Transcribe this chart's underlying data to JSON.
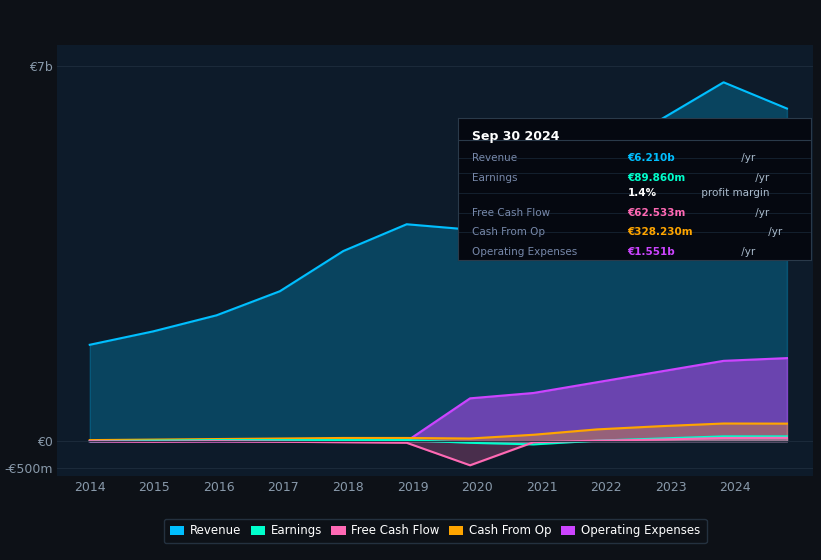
{
  "background_color": "#0d1117",
  "chart_bg_color": "#0d1b2a",
  "xlabel_ticks": [
    "2014",
    "2015",
    "2016",
    "2017",
    "2018",
    "2019",
    "2020",
    "2021",
    "2022",
    "2023",
    "2024"
  ],
  "series": {
    "Revenue": {
      "color": "#00bfff",
      "fill_alpha": 0.25,
      "data": [
        1.8,
        2.05,
        2.35,
        2.8,
        3.55,
        4.05,
        3.95,
        4.05,
        5.0,
        6.0,
        6.7,
        6.21
      ]
    },
    "Earnings": {
      "color": "#00ffcc",
      "fill_alpha": 0.2,
      "data": [
        0.0,
        0.01,
        0.02,
        0.02,
        0.02,
        0.02,
        -0.03,
        -0.06,
        0.01,
        0.05,
        0.09,
        0.09
      ]
    },
    "Free Cash Flow": {
      "color": "#ff69b4",
      "fill_alpha": 0.25,
      "data": [
        0.0,
        -0.01,
        0.0,
        -0.01,
        -0.02,
        -0.03,
        -0.45,
        -0.02,
        0.01,
        0.03,
        0.06,
        0.063
      ]
    },
    "Cash From Op": {
      "color": "#ffa500",
      "fill_alpha": 0.3,
      "data": [
        0.02,
        0.03,
        0.04,
        0.05,
        0.06,
        0.06,
        0.05,
        0.12,
        0.22,
        0.28,
        0.33,
        0.328
      ]
    },
    "Operating Expenses": {
      "color": "#cc44ff",
      "fill_alpha": 0.5,
      "data": [
        0.0,
        0.0,
        0.0,
        0.0,
        0.0,
        0.0,
        0.8,
        0.9,
        1.1,
        1.3,
        1.5,
        1.551
      ]
    }
  },
  "info_box": {
    "title": "Sep 30 2024",
    "rows": [
      {
        "label": "Revenue",
        "value": "€6.210b",
        "value_color": "#00bfff",
        "suffix": " /yr"
      },
      {
        "label": "Earnings",
        "value": "€89.860m",
        "value_color": "#00ffcc",
        "suffix": " /yr"
      },
      {
        "label": "",
        "value": "1.4%",
        "value_color": "#ffffff",
        "suffix": " profit margin"
      },
      {
        "label": "Free Cash Flow",
        "value": "€62.533m",
        "value_color": "#ff69b4",
        "suffix": " /yr"
      },
      {
        "label": "Cash From Op",
        "value": "€328.230m",
        "value_color": "#ffa500",
        "suffix": " /yr"
      },
      {
        "label": "Operating Expenses",
        "value": "€1.551b",
        "value_color": "#cc44ff",
        "suffix": " /yr"
      }
    ]
  },
  "legend": [
    {
      "label": "Revenue",
      "color": "#00bfff"
    },
    {
      "label": "Earnings",
      "color": "#00ffcc"
    },
    {
      "label": "Free Cash Flow",
      "color": "#ff69b4"
    },
    {
      "label": "Cash From Op",
      "color": "#ffa500"
    },
    {
      "label": "Operating Expenses",
      "color": "#cc44ff"
    }
  ],
  "ylim": [
    -0.65,
    7.4
  ],
  "xlim": [
    2013.5,
    2025.2
  ],
  "yticks": [
    7.0,
    0.0,
    -0.5
  ],
  "ytick_labels": [
    "€7b",
    "€0",
    "-€500m"
  ],
  "grid_color": "#1e2d3d",
  "text_color": "#8899aa",
  "border_color": "#2a3a4a"
}
